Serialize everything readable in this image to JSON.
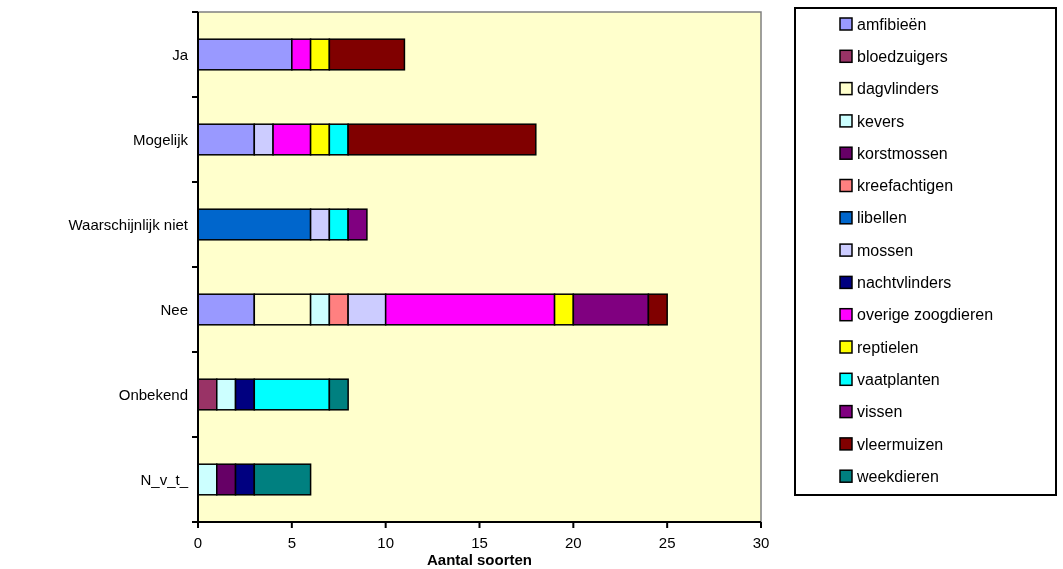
{
  "chart_data": {
    "type": "bar",
    "orientation": "horizontal",
    "stacked": true,
    "xlabel": "Aantal soorten",
    "categories": [
      "Ja",
      "Mogelijk",
      "Waarschijnlijk niet",
      "Nee",
      "Onbekend",
      "N_v_t_"
    ],
    "xlim": [
      0,
      30
    ],
    "xticks": [
      0,
      5,
      10,
      15,
      20,
      25,
      30
    ],
    "grid": false,
    "legend": "right",
    "series": [
      {
        "name": "amfibieën",
        "color": "#9999ff",
        "values": [
          5,
          3,
          null,
          3,
          null,
          null
        ]
      },
      {
        "name": "bloedzuigers",
        "color": "#993366",
        "values": [
          null,
          null,
          null,
          null,
          1,
          null
        ]
      },
      {
        "name": "dagvlinders",
        "color": "#ffffcc",
        "values": [
          null,
          null,
          null,
          3,
          null,
          null
        ]
      },
      {
        "name": "kevers",
        "color": "#ccffff",
        "values": [
          null,
          null,
          null,
          1,
          1,
          1
        ]
      },
      {
        "name": "korstmossen",
        "color": "#660066",
        "values": [
          null,
          null,
          null,
          null,
          null,
          1
        ]
      },
      {
        "name": "kreefachtigen",
        "color": "#ff8080",
        "values": [
          null,
          null,
          null,
          1,
          null,
          null
        ]
      },
      {
        "name": "libellen",
        "color": "#0066cc",
        "values": [
          null,
          null,
          6,
          null,
          null,
          null
        ]
      },
      {
        "name": "mossen",
        "color": "#ccccff",
        "values": [
          null,
          1,
          1,
          2,
          null,
          null
        ]
      },
      {
        "name": "nachtvlinders",
        "color": "#000080",
        "values": [
          null,
          null,
          null,
          null,
          1,
          1
        ]
      },
      {
        "name": "overige zoogdieren",
        "color": "#ff00ff",
        "values": [
          1,
          2,
          null,
          9,
          null,
          null
        ]
      },
      {
        "name": "reptielen",
        "color": "#ffff00",
        "values": [
          1,
          1,
          null,
          1,
          null,
          null
        ]
      },
      {
        "name": "vaatplanten",
        "color": "#00ffff",
        "values": [
          null,
          1,
          1,
          null,
          4,
          null
        ]
      },
      {
        "name": "vissen",
        "color": "#800080",
        "values": [
          null,
          null,
          1,
          4,
          null,
          null
        ]
      },
      {
        "name": "vleermuizen",
        "color": "#800000",
        "values": [
          4,
          10,
          null,
          1,
          null,
          null
        ]
      },
      {
        "name": "weekdieren",
        "color": "#008080",
        "values": [
          null,
          null,
          null,
          null,
          1,
          3
        ]
      }
    ]
  }
}
